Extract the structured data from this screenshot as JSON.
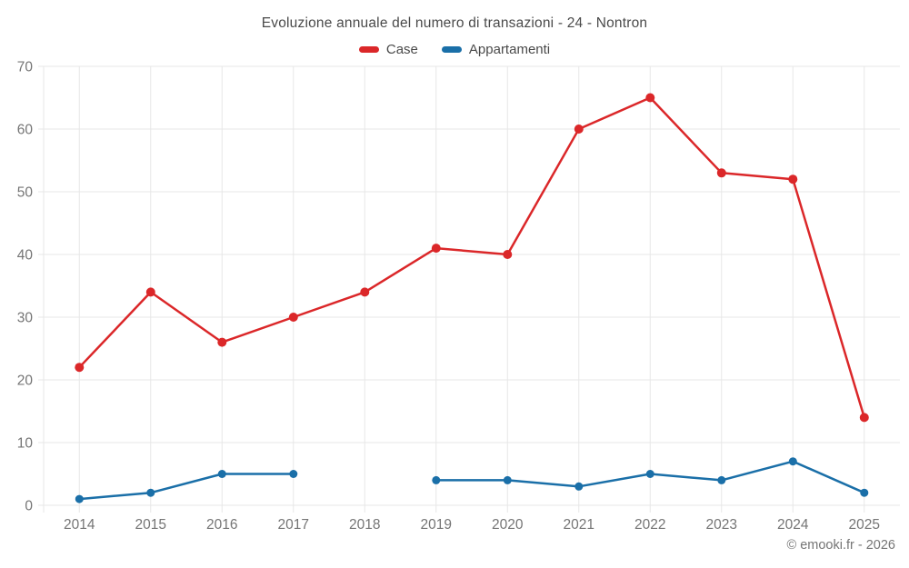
{
  "chart_data": {
    "type": "line",
    "title": "Evoluzione annuale del numero di transazioni - 24 - Nontron",
    "categories": [
      "2014",
      "2015",
      "2016",
      "2017",
      "2018",
      "2019",
      "2020",
      "2021",
      "2022",
      "2023",
      "2024",
      "2025"
    ],
    "series": [
      {
        "name": "Case",
        "color": "#db2729",
        "values": [
          22,
          34,
          26,
          30,
          34,
          41,
          40,
          60,
          65,
          53,
          52,
          14
        ]
      },
      {
        "name": "Appartamenti",
        "color": "#1a6fa8",
        "values": [
          1,
          2,
          5,
          5,
          null,
          4,
          4,
          3,
          5,
          4,
          7,
          2
        ]
      }
    ],
    "xlabel": "",
    "ylabel": "",
    "ylim": [
      0,
      70
    ],
    "yticks": [
      0,
      10,
      20,
      30,
      40,
      50,
      60,
      70
    ],
    "grid": true,
    "legend_position": "top"
  },
  "footer": {
    "copyright": "© emooki.fr - 2026"
  },
  "theme": {
    "background": "#ffffff",
    "grid_color": "#e7e7e7",
    "axis_label_color": "#757575",
    "title_color": "#4a4a4a"
  }
}
